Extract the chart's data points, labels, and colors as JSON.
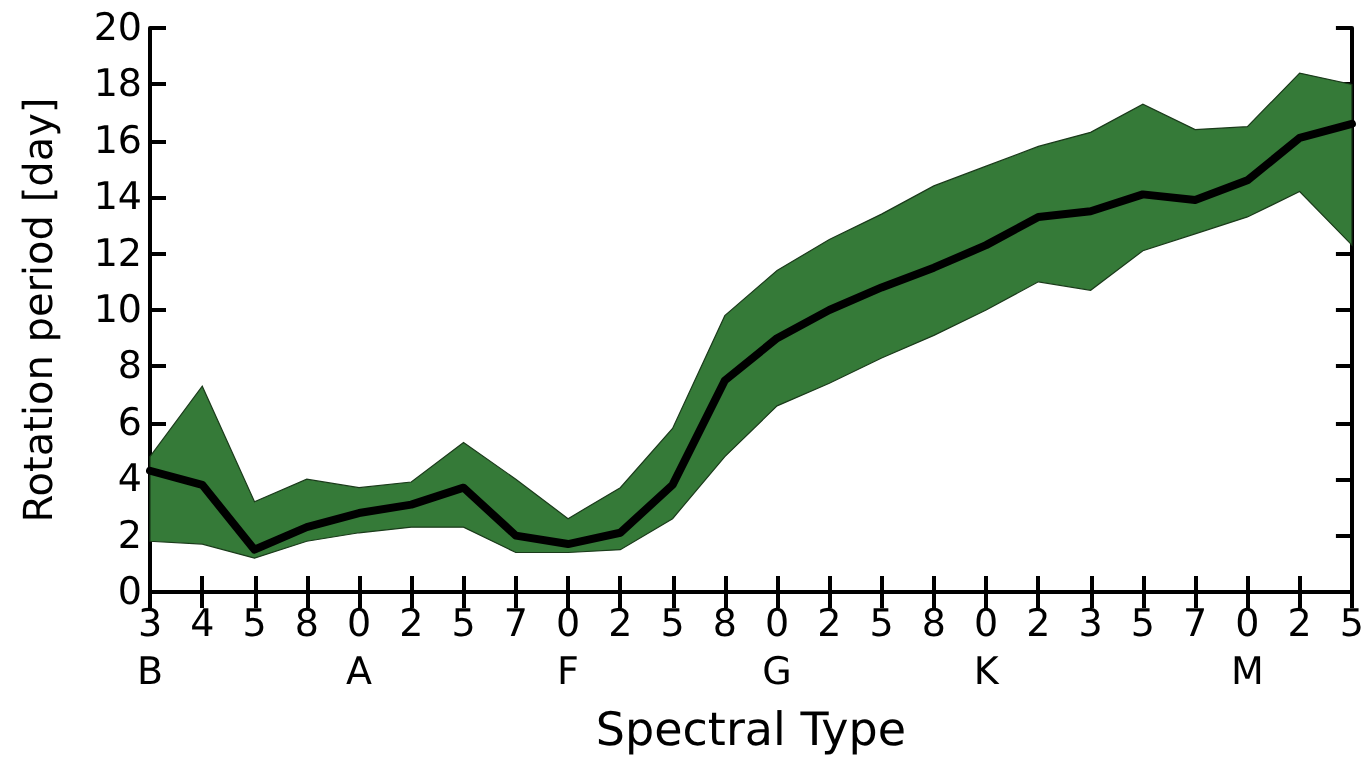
{
  "chart_data": {
    "type": "line",
    "xlabel": "Spectral Type",
    "ylabel": "Rotation period [day]",
    "categories": [
      "3\nB",
      "4",
      "5",
      "8",
      "0\nA",
      "2",
      "5",
      "7",
      "0\nF",
      "2",
      "5",
      "8",
      "0\nG",
      "2",
      "5",
      "8",
      "0\nK",
      "2",
      "3",
      "5",
      "7",
      "0\nM",
      "2",
      "5"
    ],
    "series": [
      {
        "color": "#000000",
        "values": [
          4.3,
          3.8,
          1.5,
          2.3,
          2.8,
          3.1,
          3.7,
          2.0,
          1.7,
          2.1,
          3.8,
          7.5,
          9.0,
          10.0,
          10.8,
          11.5,
          12.3,
          13.3,
          13.5,
          14.1,
          13.9,
          14.6,
          16.1,
          16.6
        ],
        "upper": [
          4.8,
          7.3,
          3.2,
          4.0,
          3.7,
          3.9,
          5.3,
          4.0,
          2.6,
          3.7,
          5.8,
          9.8,
          11.4,
          12.5,
          13.4,
          14.4,
          15.1,
          15.8,
          16.3,
          17.3,
          16.4,
          16.5,
          18.4,
          18.0
        ],
        "lower": [
          1.8,
          1.7,
          1.2,
          1.8,
          2.1,
          2.3,
          2.3,
          1.4,
          1.4,
          1.5,
          2.6,
          4.8,
          6.6,
          7.4,
          8.3,
          9.1,
          10.0,
          11.0,
          10.7,
          12.1,
          12.7,
          13.3,
          14.2,
          12.3
        ]
      }
    ],
    "ylim": [
      0,
      20
    ],
    "yticks": [
      0,
      2,
      4,
      6,
      8,
      10,
      12,
      14,
      16,
      18,
      20
    ],
    "grid": false,
    "marker": "none",
    "line_style": "solid"
  }
}
